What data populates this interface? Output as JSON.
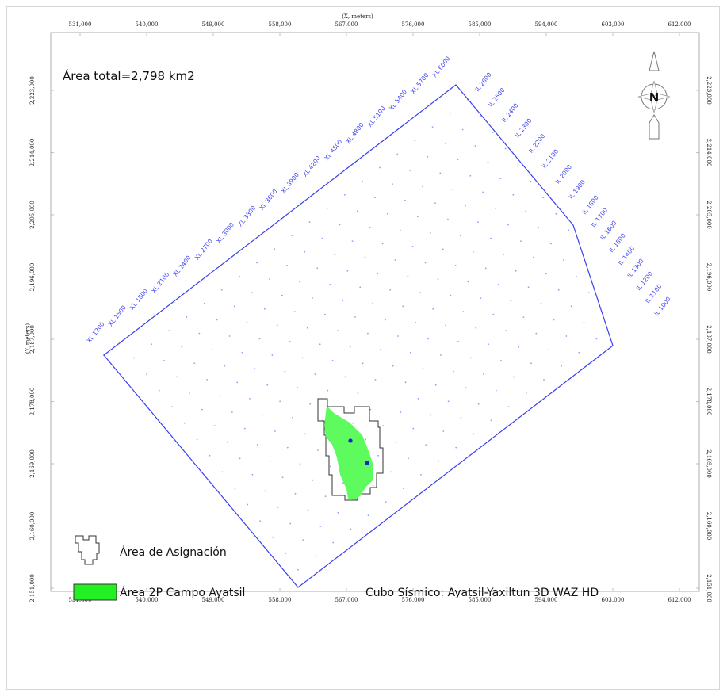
{
  "area_total": "Área total=2,798 km2",
  "x_axis_title": "(X, meters)",
  "y_axis_title": "(Y, meters)",
  "x_ticks": [
    "531,000",
    "540,000",
    "549,000",
    "558,000",
    "567,000",
    "576,000",
    "585,000",
    "594,000",
    "603,000",
    "612,000"
  ],
  "y_ticks": [
    "2,223,000",
    "2,214,000",
    "2,205,000",
    "2,196,000",
    "2,187,000",
    "2,178,000",
    "2,169,000",
    "2,160,000",
    "2,151,000"
  ],
  "xl_labels": [
    "XL 1200",
    "XL 1500",
    "XL 1800",
    "XL 2100",
    "XL 2400",
    "XL 2700",
    "XL 3000",
    "XL 3300",
    "XL 3600",
    "XL 3900",
    "XL 4200",
    "XL 4500",
    "XL 4800",
    "XL 5100",
    "XL 5400",
    "XL 5700",
    "XL 6000"
  ],
  "il_labels": [
    "IL 2600",
    "IL 2500",
    "IL 2400",
    "IL 2300",
    "IL 2200",
    "IL 2100",
    "IL 2000",
    "IL 1900",
    "IL 1800",
    "IL 1700",
    "IL 1600",
    "IL 1500",
    "IL 1400",
    "IL 1300",
    "IL 1200",
    "IL 1100",
    "IL 1000"
  ],
  "north_label": "N",
  "legend": [
    {
      "label": "Área de Asignación"
    },
    {
      "label": "Área 2P Campo Ayatsil"
    }
  ],
  "cube_label": "Cubo Sísmico: Ayatsil-Yaxiltun 3D WAZ HD",
  "colors": {
    "survey_outline": "#3a3ff0",
    "grid_dots": "#9a9cf2",
    "field_fill": "#5dfb5d",
    "legend_fill": "#22f022",
    "well": "#1a20c8",
    "assignment_outline": "#333333"
  }
}
